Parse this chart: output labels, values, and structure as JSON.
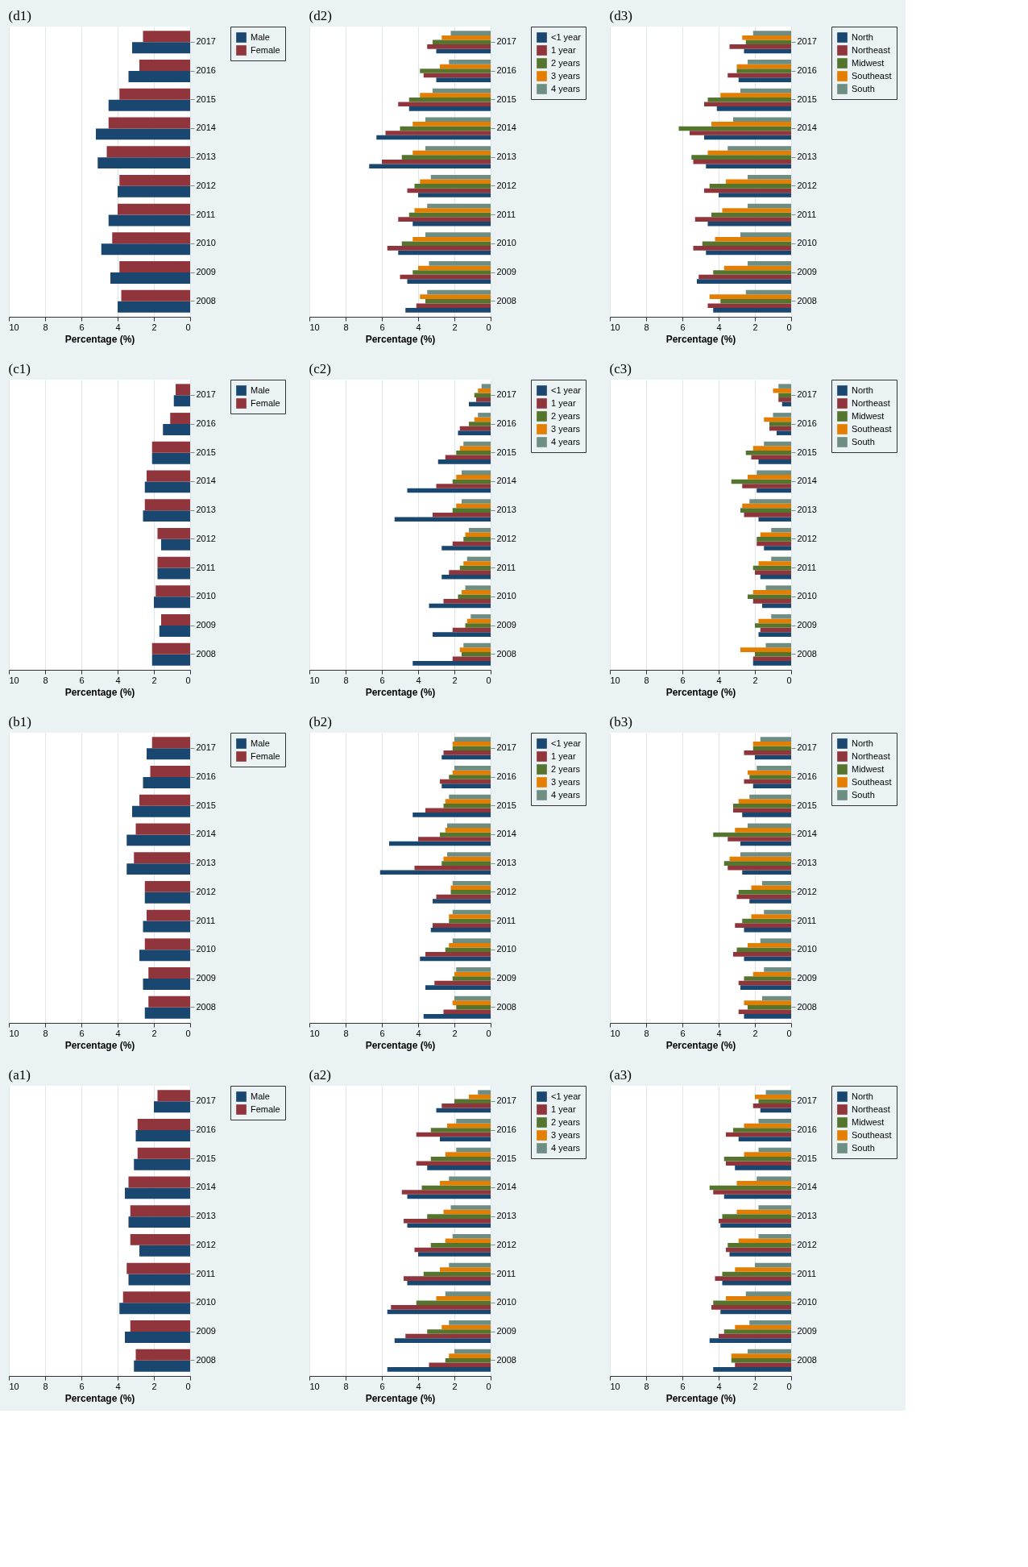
{
  "chart_data": [
    {
      "type": "bar",
      "title": "(d1)",
      "orientation": "horizontal",
      "xlabel": "Percentage (%)",
      "xlim": [
        10,
        0
      ],
      "xticks": [
        0,
        2,
        4,
        6,
        8,
        10
      ],
      "grid": "x",
      "legend": "right",
      "categories": [
        "2017",
        "2016",
        "2015",
        "2014",
        "2013",
        "2012",
        "2011",
        "2010",
        "2009",
        "2008"
      ],
      "series": [
        {
          "name": "Male",
          "color": "#1a476f",
          "values": [
            3.2,
            3.4,
            4.5,
            5.2,
            5.1,
            4.0,
            4.5,
            4.9,
            4.4,
            4.0
          ]
        },
        {
          "name": "Female",
          "color": "#90353b",
          "values": [
            2.6,
            2.8,
            3.9,
            4.5,
            4.6,
            3.9,
            4.0,
            4.3,
            3.9,
            3.8
          ]
        }
      ]
    },
    {
      "type": "bar",
      "title": "(d2)",
      "orientation": "horizontal",
      "xlabel": "Percentage (%)",
      "xlim": [
        10,
        0
      ],
      "xticks": [
        0,
        2,
        4,
        6,
        8,
        10
      ],
      "grid": "x",
      "legend": "right",
      "categories": [
        "2017",
        "2016",
        "2015",
        "2014",
        "2013",
        "2012",
        "2011",
        "2010",
        "2009",
        "2008"
      ],
      "series": [
        {
          "name": "<1 year",
          "color": "#1a476f",
          "values": [
            3.0,
            3.0,
            4.5,
            6.3,
            6.7,
            4.0,
            4.3,
            5.1,
            4.6,
            4.7
          ]
        },
        {
          "name": "1 year",
          "color": "#90353b",
          "values": [
            3.5,
            3.7,
            5.1,
            5.8,
            6.0,
            4.6,
            5.1,
            5.7,
            5.0,
            4.1
          ]
        },
        {
          "name": "2 years",
          "color": "#55752f",
          "values": [
            3.2,
            3.9,
            4.5,
            5.0,
            4.9,
            4.2,
            4.5,
            4.9,
            4.3,
            3.6
          ]
        },
        {
          "name": "3 years",
          "color": "#e37e00",
          "values": [
            2.7,
            2.8,
            3.9,
            4.3,
            4.3,
            3.9,
            4.2,
            4.3,
            4.0,
            3.9
          ]
        },
        {
          "name": "4 years",
          "color": "#6e8e84",
          "values": [
            2.2,
            2.3,
            3.2,
            3.6,
            3.6,
            3.3,
            3.5,
            3.6,
            3.4,
            3.5
          ]
        }
      ]
    },
    {
      "type": "bar",
      "title": "(d3)",
      "orientation": "horizontal",
      "xlabel": "Percentage (%)",
      "xlim": [
        10,
        0
      ],
      "xticks": [
        0,
        2,
        4,
        6,
        8,
        10
      ],
      "grid": "x",
      "legend": "right",
      "categories": [
        "2017",
        "2016",
        "2015",
        "2014",
        "2013",
        "2012",
        "2011",
        "2010",
        "2009",
        "2008"
      ],
      "series": [
        {
          "name": "North",
          "color": "#1a476f",
          "values": [
            2.6,
            2.9,
            4.1,
            4.8,
            4.7,
            4.0,
            4.6,
            4.7,
            5.2,
            4.3
          ]
        },
        {
          "name": "Northeast",
          "color": "#90353b",
          "values": [
            3.4,
            3.5,
            4.8,
            5.6,
            5.4,
            4.8,
            5.3,
            5.4,
            5.1,
            4.6
          ]
        },
        {
          "name": "Midwest",
          "color": "#55752f",
          "values": [
            2.5,
            3.0,
            4.6,
            6.2,
            5.5,
            4.5,
            4.4,
            4.9,
            4.3,
            3.9
          ]
        },
        {
          "name": "Southeast",
          "color": "#e37e00",
          "values": [
            2.7,
            3.0,
            3.9,
            4.4,
            4.6,
            3.6,
            3.8,
            4.2,
            3.7,
            4.5
          ]
        },
        {
          "name": "South",
          "color": "#6e8e84",
          "values": [
            2.1,
            2.4,
            2.8,
            3.2,
            3.5,
            2.4,
            2.4,
            2.8,
            2.4,
            2.5
          ]
        }
      ]
    },
    {
      "type": "bar",
      "title": "(c1)",
      "orientation": "horizontal",
      "xlabel": "Percentage (%)",
      "xlim": [
        10,
        0
      ],
      "xticks": [
        0,
        2,
        4,
        6,
        8,
        10
      ],
      "grid": "x",
      "legend": "right",
      "categories": [
        "2017",
        "2016",
        "2015",
        "2014",
        "2013",
        "2012",
        "2011",
        "2010",
        "2009",
        "2008"
      ],
      "series": [
        {
          "name": "Male",
          "color": "#1a476f",
          "values": [
            0.9,
            1.5,
            2.1,
            2.5,
            2.6,
            1.6,
            1.8,
            2.0,
            1.7,
            2.1
          ]
        },
        {
          "name": "Female",
          "color": "#90353b",
          "values": [
            0.8,
            1.1,
            2.1,
            2.4,
            2.5,
            1.8,
            1.8,
            1.9,
            1.6,
            2.1
          ]
        }
      ]
    },
    {
      "type": "bar",
      "title": "(c2)",
      "orientation": "horizontal",
      "xlabel": "Percentage (%)",
      "xlim": [
        10,
        0
      ],
      "xticks": [
        0,
        2,
        4,
        6,
        8,
        10
      ],
      "grid": "x",
      "legend": "right",
      "categories": [
        "2017",
        "2016",
        "2015",
        "2014",
        "2013",
        "2012",
        "2011",
        "2010",
        "2009",
        "2008"
      ],
      "series": [
        {
          "name": "<1 year",
          "color": "#1a476f",
          "values": [
            1.2,
            1.8,
            2.9,
            4.6,
            5.3,
            2.7,
            2.7,
            3.4,
            3.2,
            4.3
          ]
        },
        {
          "name": "1 year",
          "color": "#90353b",
          "values": [
            0.8,
            1.7,
            2.5,
            3.0,
            3.2,
            2.1,
            2.3,
            2.6,
            2.1,
            2.1
          ]
        },
        {
          "name": "2 years",
          "color": "#55752f",
          "values": [
            0.9,
            1.2,
            1.9,
            2.1,
            2.1,
            1.5,
            1.7,
            1.8,
            1.4,
            1.6
          ]
        },
        {
          "name": "3 years",
          "color": "#e37e00",
          "values": [
            0.7,
            0.9,
            1.7,
            1.9,
            1.9,
            1.4,
            1.5,
            1.6,
            1.3,
            1.7
          ]
        },
        {
          "name": "4 years",
          "color": "#6e8e84",
          "values": [
            0.5,
            0.7,
            1.5,
            1.6,
            1.6,
            1.2,
            1.3,
            1.4,
            1.1,
            1.5
          ]
        }
      ]
    },
    {
      "type": "bar",
      "title": "(c3)",
      "orientation": "horizontal",
      "xlabel": "Percentage (%)",
      "xlim": [
        10,
        0
      ],
      "xticks": [
        0,
        2,
        4,
        6,
        8,
        10
      ],
      "grid": "x",
      "legend": "right",
      "categories": [
        "2017",
        "2016",
        "2015",
        "2014",
        "2013",
        "2012",
        "2011",
        "2010",
        "2009",
        "2008"
      ],
      "series": [
        {
          "name": "North",
          "color": "#1a476f",
          "values": [
            0.5,
            0.8,
            1.8,
            1.9,
            1.8,
            1.5,
            1.7,
            1.6,
            1.8,
            2.1
          ]
        },
        {
          "name": "Northeast",
          "color": "#90353b",
          "values": [
            0.7,
            1.2,
            2.2,
            2.7,
            2.6,
            1.9,
            2.0,
            2.1,
            1.7,
            2.1
          ]
        },
        {
          "name": "Midwest",
          "color": "#55752f",
          "values": [
            0.7,
            1.2,
            2.5,
            3.3,
            2.8,
            1.9,
            2.1,
            2.4,
            2.0,
            2.0
          ]
        },
        {
          "name": "Southeast",
          "color": "#e37e00",
          "values": [
            1.0,
            1.5,
            2.1,
            2.4,
            2.7,
            1.7,
            1.8,
            2.1,
            1.8,
            2.8
          ]
        },
        {
          "name": "South",
          "color": "#6e8e84",
          "values": [
            0.7,
            1.0,
            1.5,
            1.9,
            2.3,
            1.1,
            1.1,
            1.4,
            1.1,
            1.4
          ]
        }
      ]
    },
    {
      "type": "bar",
      "title": "(b1)",
      "orientation": "horizontal",
      "xlabel": "Percentage (%)",
      "xlim": [
        10,
        0
      ],
      "xticks": [
        0,
        2,
        4,
        6,
        8,
        10
      ],
      "grid": "x",
      "legend": "right",
      "categories": [
        "2017",
        "2016",
        "2015",
        "2014",
        "2013",
        "2012",
        "2011",
        "2010",
        "2009",
        "2008"
      ],
      "series": [
        {
          "name": "Male",
          "color": "#1a476f",
          "values": [
            2.4,
            2.6,
            3.2,
            3.5,
            3.5,
            2.5,
            2.6,
            2.8,
            2.6,
            2.5
          ]
        },
        {
          "name": "Female",
          "color": "#90353b",
          "values": [
            2.1,
            2.2,
            2.8,
            3.0,
            3.1,
            2.5,
            2.4,
            2.5,
            2.3,
            2.3
          ]
        }
      ]
    },
    {
      "type": "bar",
      "title": "(b2)",
      "orientation": "horizontal",
      "xlabel": "Percentage (%)",
      "xlim": [
        10,
        0
      ],
      "xticks": [
        0,
        2,
        4,
        6,
        8,
        10
      ],
      "grid": "x",
      "legend": "right",
      "categories": [
        "2017",
        "2016",
        "2015",
        "2014",
        "2013",
        "2012",
        "2011",
        "2010",
        "2009",
        "2008"
      ],
      "series": [
        {
          "name": "<1 year",
          "color": "#1a476f",
          "values": [
            2.7,
            2.7,
            4.3,
            5.6,
            6.1,
            3.2,
            3.3,
            3.9,
            3.6,
            3.7
          ]
        },
        {
          "name": "1 year",
          "color": "#90353b",
          "values": [
            2.6,
            2.8,
            3.6,
            4.0,
            4.2,
            3.0,
            3.2,
            3.6,
            3.1,
            2.6
          ]
        },
        {
          "name": "2 years",
          "color": "#55752f",
          "values": [
            2.1,
            2.3,
            2.6,
            2.8,
            2.7,
            2.2,
            2.3,
            2.5,
            2.1,
            1.9
          ]
        },
        {
          "name": "3 years",
          "color": "#e37e00",
          "values": [
            2.1,
            2.1,
            2.5,
            2.5,
            2.6,
            2.2,
            2.3,
            2.3,
            2.0,
            2.1
          ]
        },
        {
          "name": "4 years",
          "color": "#6e8e84",
          "values": [
            2.0,
            2.0,
            2.3,
            2.4,
            2.4,
            2.1,
            2.1,
            2.1,
            1.9,
            2.0
          ]
        }
      ]
    },
    {
      "type": "bar",
      "title": "(b3)",
      "orientation": "horizontal",
      "xlabel": "Percentage (%)",
      "xlim": [
        10,
        0
      ],
      "xticks": [
        0,
        2,
        4,
        6,
        8,
        10
      ],
      "grid": "x",
      "legend": "right",
      "categories": [
        "2017",
        "2016",
        "2015",
        "2014",
        "2013",
        "2012",
        "2011",
        "2010",
        "2009",
        "2008"
      ],
      "series": [
        {
          "name": "North",
          "color": "#1a476f",
          "values": [
            2.0,
            2.1,
            2.7,
            2.8,
            2.7,
            2.3,
            2.6,
            2.6,
            2.8,
            2.6
          ]
        },
        {
          "name": "Northeast",
          "color": "#90353b",
          "values": [
            2.6,
            2.6,
            3.2,
            3.5,
            3.5,
            3.0,
            3.1,
            3.2,
            2.9,
            2.9
          ]
        },
        {
          "name": "Midwest",
          "color": "#55752f",
          "values": [
            2.1,
            2.3,
            3.2,
            4.3,
            3.7,
            2.9,
            2.7,
            3.0,
            2.6,
            2.4
          ]
        },
        {
          "name": "Southeast",
          "color": "#e37e00",
          "values": [
            2.1,
            2.4,
            2.9,
            3.1,
            3.4,
            2.2,
            2.2,
            2.4,
            2.1,
            2.6
          ]
        },
        {
          "name": "South",
          "color": "#6e8e84",
          "values": [
            1.7,
            1.9,
            2.3,
            2.4,
            2.8,
            1.6,
            1.5,
            1.7,
            1.5,
            1.6
          ]
        }
      ]
    },
    {
      "type": "bar",
      "title": "(a1)",
      "orientation": "horizontal",
      "xlabel": "Percentage (%)",
      "xlim": [
        10,
        0
      ],
      "xticks": [
        0,
        2,
        4,
        6,
        8,
        10
      ],
      "grid": "x",
      "legend": "right",
      "categories": [
        "2017",
        "2016",
        "2015",
        "2014",
        "2013",
        "2012",
        "2011",
        "2010",
        "2009",
        "2008"
      ],
      "series": [
        {
          "name": "Male",
          "color": "#1a476f",
          "values": [
            2.0,
            3.0,
            3.1,
            3.6,
            3.4,
            2.8,
            3.4,
            3.9,
            3.6,
            3.1
          ]
        },
        {
          "name": "Female",
          "color": "#90353b",
          "values": [
            1.8,
            2.9,
            2.9,
            3.4,
            3.3,
            3.3,
            3.5,
            3.7,
            3.3,
            3.0
          ]
        }
      ]
    },
    {
      "type": "bar",
      "title": "(a2)",
      "orientation": "horizontal",
      "xlabel": "Percentage (%)",
      "xlim": [
        10,
        0
      ],
      "xticks": [
        0,
        2,
        4,
        6,
        8,
        10
      ],
      "grid": "x",
      "legend": "right",
      "categories": [
        "2017",
        "2016",
        "2015",
        "2014",
        "2013",
        "2012",
        "2011",
        "2010",
        "2009",
        "2008"
      ],
      "series": [
        {
          "name": "<1 year",
          "color": "#1a476f",
          "values": [
            3.0,
            2.8,
            3.5,
            4.6,
            4.6,
            4.0,
            4.6,
            5.7,
            5.3,
            5.7
          ]
        },
        {
          "name": "1 year",
          "color": "#90353b",
          "values": [
            2.7,
            4.1,
            4.1,
            4.9,
            4.8,
            4.2,
            4.8,
            5.5,
            4.7,
            3.4
          ]
        },
        {
          "name": "2 years",
          "color": "#55752f",
          "values": [
            2.0,
            3.3,
            3.3,
            3.8,
            3.5,
            3.3,
            3.7,
            4.1,
            3.5,
            2.5
          ]
        },
        {
          "name": "3 years",
          "color": "#e37e00",
          "values": [
            1.2,
            2.4,
            2.5,
            2.8,
            2.6,
            2.5,
            2.8,
            3.0,
            2.7,
            2.3
          ]
        },
        {
          "name": "4 years",
          "color": "#6e8e84",
          "values": [
            0.7,
            1.9,
            1.9,
            2.3,
            2.2,
            2.1,
            2.3,
            2.5,
            2.3,
            2.0
          ]
        }
      ]
    },
    {
      "type": "bar",
      "title": "(a3)",
      "orientation": "horizontal",
      "xlabel": "Percentage (%)",
      "xlim": [
        10,
        0
      ],
      "xticks": [
        0,
        2,
        4,
        6,
        8,
        10
      ],
      "grid": "x",
      "legend": "right",
      "categories": [
        "2017",
        "2016",
        "2015",
        "2014",
        "2013",
        "2012",
        "2011",
        "2010",
        "2009",
        "2008"
      ],
      "series": [
        {
          "name": "North",
          "color": "#1a476f",
          "values": [
            1.7,
            2.9,
            3.1,
            3.7,
            3.9,
            3.4,
            3.8,
            3.9,
            4.5,
            4.3
          ]
        },
        {
          "name": "Northeast",
          "color": "#90353b",
          "values": [
            2.1,
            3.6,
            3.6,
            4.3,
            4.0,
            3.6,
            4.2,
            4.4,
            4.0,
            3.1
          ]
        },
        {
          "name": "Midwest",
          "color": "#55752f",
          "values": [
            1.8,
            3.2,
            3.7,
            4.5,
            3.8,
            3.5,
            3.8,
            4.3,
            3.7,
            3.3
          ]
        },
        {
          "name": "Southeast",
          "color": "#e37e00",
          "values": [
            2.0,
            2.6,
            2.6,
            3.0,
            3.0,
            2.9,
            3.1,
            3.6,
            3.1,
            3.3
          ]
        },
        {
          "name": "South",
          "color": "#6e8e84",
          "values": [
            1.4,
            1.8,
            1.8,
            1.9,
            1.8,
            1.8,
            2.0,
            2.5,
            2.3,
            2.4
          ]
        }
      ]
    }
  ]
}
